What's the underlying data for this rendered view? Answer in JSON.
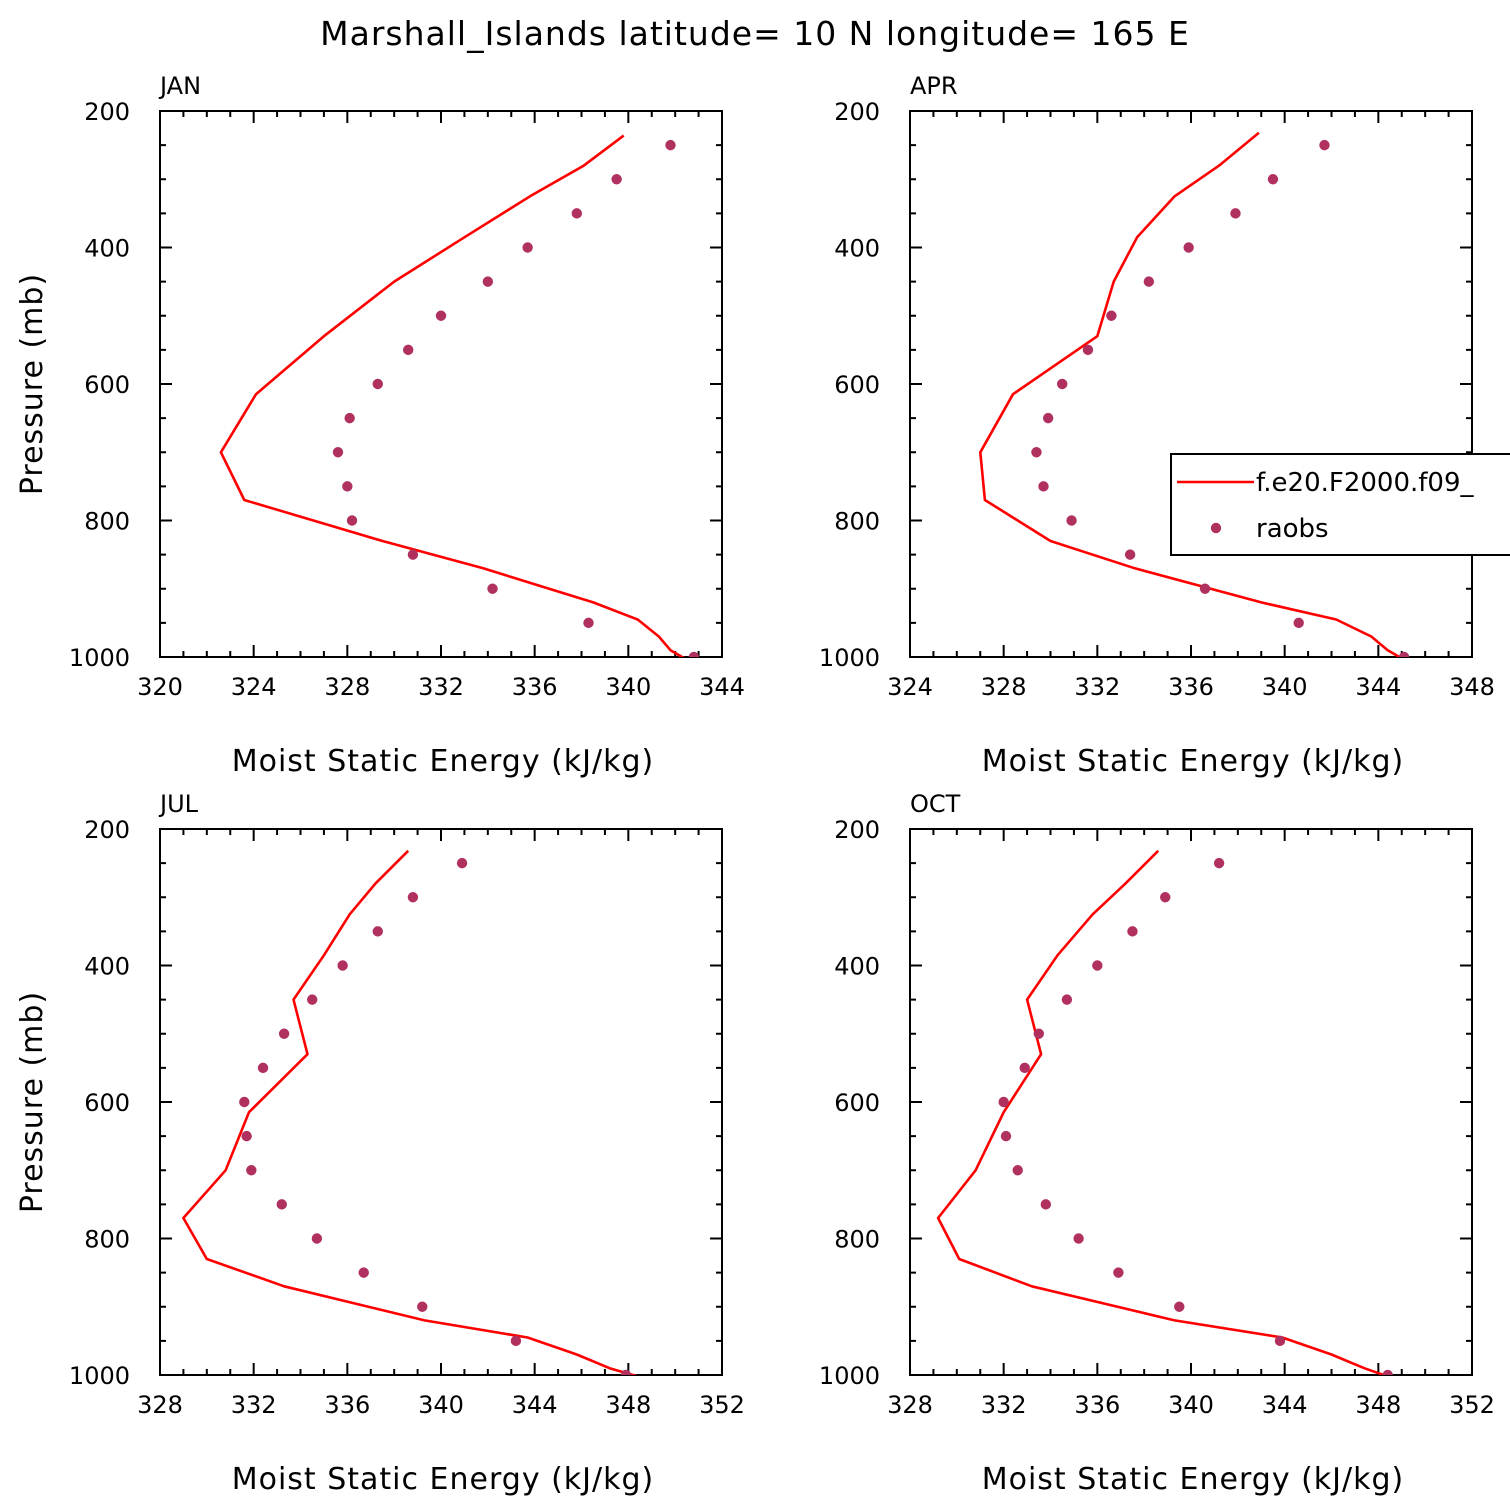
{
  "title": "Marshall_Islands  latitude= 10 N longitude= 165 E",
  "colors": {
    "model": "#ff0000",
    "obs": "#b03060",
    "axes": "#000000"
  },
  "legend": {
    "model_label": "f.e20.F2000.f09_",
    "obs_label": "raobs"
  },
  "chart_data": [
    {
      "type": "line",
      "title": "JAN",
      "xlabel": "Moist Static Energy (kJ/kg)",
      "ylabel": "Pressure (mb)",
      "xlim": [
        320,
        344
      ],
      "ylim": [
        200,
        1000
      ],
      "xticks": [
        320,
        324,
        328,
        332,
        336,
        340,
        344
      ],
      "yticks": [
        200,
        400,
        600,
        800,
        1000
      ],
      "series": [
        {
          "name": "f.e20.F2000.f09_",
          "kind": "line",
          "pressure": [
            236,
            280,
            325,
            385,
            450,
            530,
            615,
            700,
            770,
            830,
            870,
            920,
            945,
            970,
            990,
            1002
          ],
          "values": [
            339.8,
            338.1,
            335.8,
            333.0,
            330.0,
            327.0,
            324.1,
            322.6,
            323.6,
            329.5,
            333.8,
            338.5,
            340.4,
            341.3,
            341.8,
            342.4
          ]
        },
        {
          "name": "raobs",
          "kind": "scatter",
          "pressure": [
            250,
            300,
            350,
            400,
            450,
            500,
            550,
            600,
            650,
            700,
            750,
            800,
            850,
            900,
            950,
            1000
          ],
          "values": [
            341.8,
            339.5,
            337.8,
            335.7,
            334.0,
            332.0,
            330.6,
            329.3,
            328.1,
            327.6,
            328.0,
            328.2,
            330.8,
            334.2,
            338.3,
            342.8
          ]
        }
      ]
    },
    {
      "type": "line",
      "title": "APR",
      "xlabel": "Moist Static Energy (kJ/kg)",
      "ylabel": "",
      "xlim": [
        324,
        348
      ],
      "ylim": [
        200,
        1000
      ],
      "xticks": [
        324,
        328,
        332,
        336,
        340,
        344,
        348
      ],
      "yticks": [
        200,
        400,
        600,
        800,
        1000
      ],
      "series": [
        {
          "name": "f.e20.F2000.f09_",
          "kind": "line",
          "pressure": [
            232,
            280,
            325,
            385,
            450,
            530,
            615,
            700,
            770,
            830,
            870,
            920,
            945,
            970,
            990,
            1002
          ],
          "values": [
            338.9,
            337.2,
            335.3,
            333.7,
            332.7,
            332.0,
            328.4,
            327.0,
            327.2,
            330.0,
            333.6,
            339.0,
            342.2,
            343.7,
            344.4,
            345.0
          ]
        },
        {
          "name": "raobs",
          "kind": "scatter",
          "pressure": [
            250,
            300,
            350,
            400,
            450,
            500,
            550,
            600,
            650,
            700,
            750,
            800,
            850,
            900,
            950,
            1000
          ],
          "values": [
            341.7,
            339.5,
            337.9,
            335.9,
            334.2,
            332.6,
            331.6,
            330.5,
            329.9,
            329.4,
            329.7,
            330.9,
            333.4,
            336.6,
            340.6,
            345.1
          ]
        }
      ]
    },
    {
      "type": "line",
      "title": "JUL",
      "xlabel": "Moist Static Energy (kJ/kg)",
      "ylabel": "Pressure (mb)",
      "xlim": [
        328,
        352
      ],
      "ylim": [
        200,
        1000
      ],
      "xticks": [
        328,
        332,
        336,
        340,
        344,
        348,
        352
      ],
      "yticks": [
        200,
        400,
        600,
        800,
        1000
      ],
      "series": [
        {
          "name": "f.e20.F2000.f09_",
          "kind": "line",
          "pressure": [
            232,
            280,
            325,
            385,
            450,
            530,
            615,
            700,
            770,
            830,
            870,
            920,
            945,
            970,
            990,
            1002
          ],
          "values": [
            338.6,
            337.2,
            336.1,
            335.0,
            333.7,
            334.3,
            331.8,
            330.8,
            329.0,
            330.0,
            333.3,
            339.3,
            343.7,
            345.8,
            347.2,
            348.4
          ]
        },
        {
          "name": "raobs",
          "kind": "scatter",
          "pressure": [
            250,
            300,
            350,
            400,
            450,
            500,
            550,
            600,
            650,
            700,
            750,
            800,
            850,
            900,
            950,
            1000
          ],
          "values": [
            340.9,
            338.8,
            337.3,
            335.8,
            334.5,
            333.3,
            332.4,
            331.6,
            331.7,
            331.9,
            333.2,
            334.7,
            336.7,
            339.2,
            343.2,
            347.9
          ]
        }
      ]
    },
    {
      "type": "line",
      "title": "OCT",
      "xlabel": "Moist Static Energy (kJ/kg)",
      "ylabel": "",
      "xlim": [
        328,
        352
      ],
      "ylim": [
        200,
        1000
      ],
      "xticks": [
        328,
        332,
        336,
        340,
        344,
        348,
        352
      ],
      "yticks": [
        200,
        400,
        600,
        800,
        1000
      ],
      "series": [
        {
          "name": "f.e20.F2000.f09_",
          "kind": "line",
          "pressure": [
            232,
            280,
            325,
            385,
            450,
            530,
            615,
            700,
            770,
            830,
            870,
            920,
            945,
            970,
            990,
            1002
          ],
          "values": [
            338.6,
            337.2,
            335.8,
            334.3,
            333.0,
            333.6,
            332.0,
            330.8,
            329.2,
            330.1,
            333.2,
            339.3,
            343.9,
            346.0,
            347.4,
            348.4
          ]
        },
        {
          "name": "raobs",
          "kind": "scatter",
          "pressure": [
            250,
            300,
            350,
            400,
            450,
            500,
            550,
            600,
            650,
            700,
            750,
            800,
            850,
            900,
            950,
            1000
          ],
          "values": [
            341.2,
            338.9,
            337.5,
            336.0,
            334.7,
            333.5,
            332.9,
            332.0,
            332.1,
            332.6,
            333.8,
            335.2,
            336.9,
            339.5,
            343.8,
            348.4
          ]
        }
      ]
    }
  ]
}
